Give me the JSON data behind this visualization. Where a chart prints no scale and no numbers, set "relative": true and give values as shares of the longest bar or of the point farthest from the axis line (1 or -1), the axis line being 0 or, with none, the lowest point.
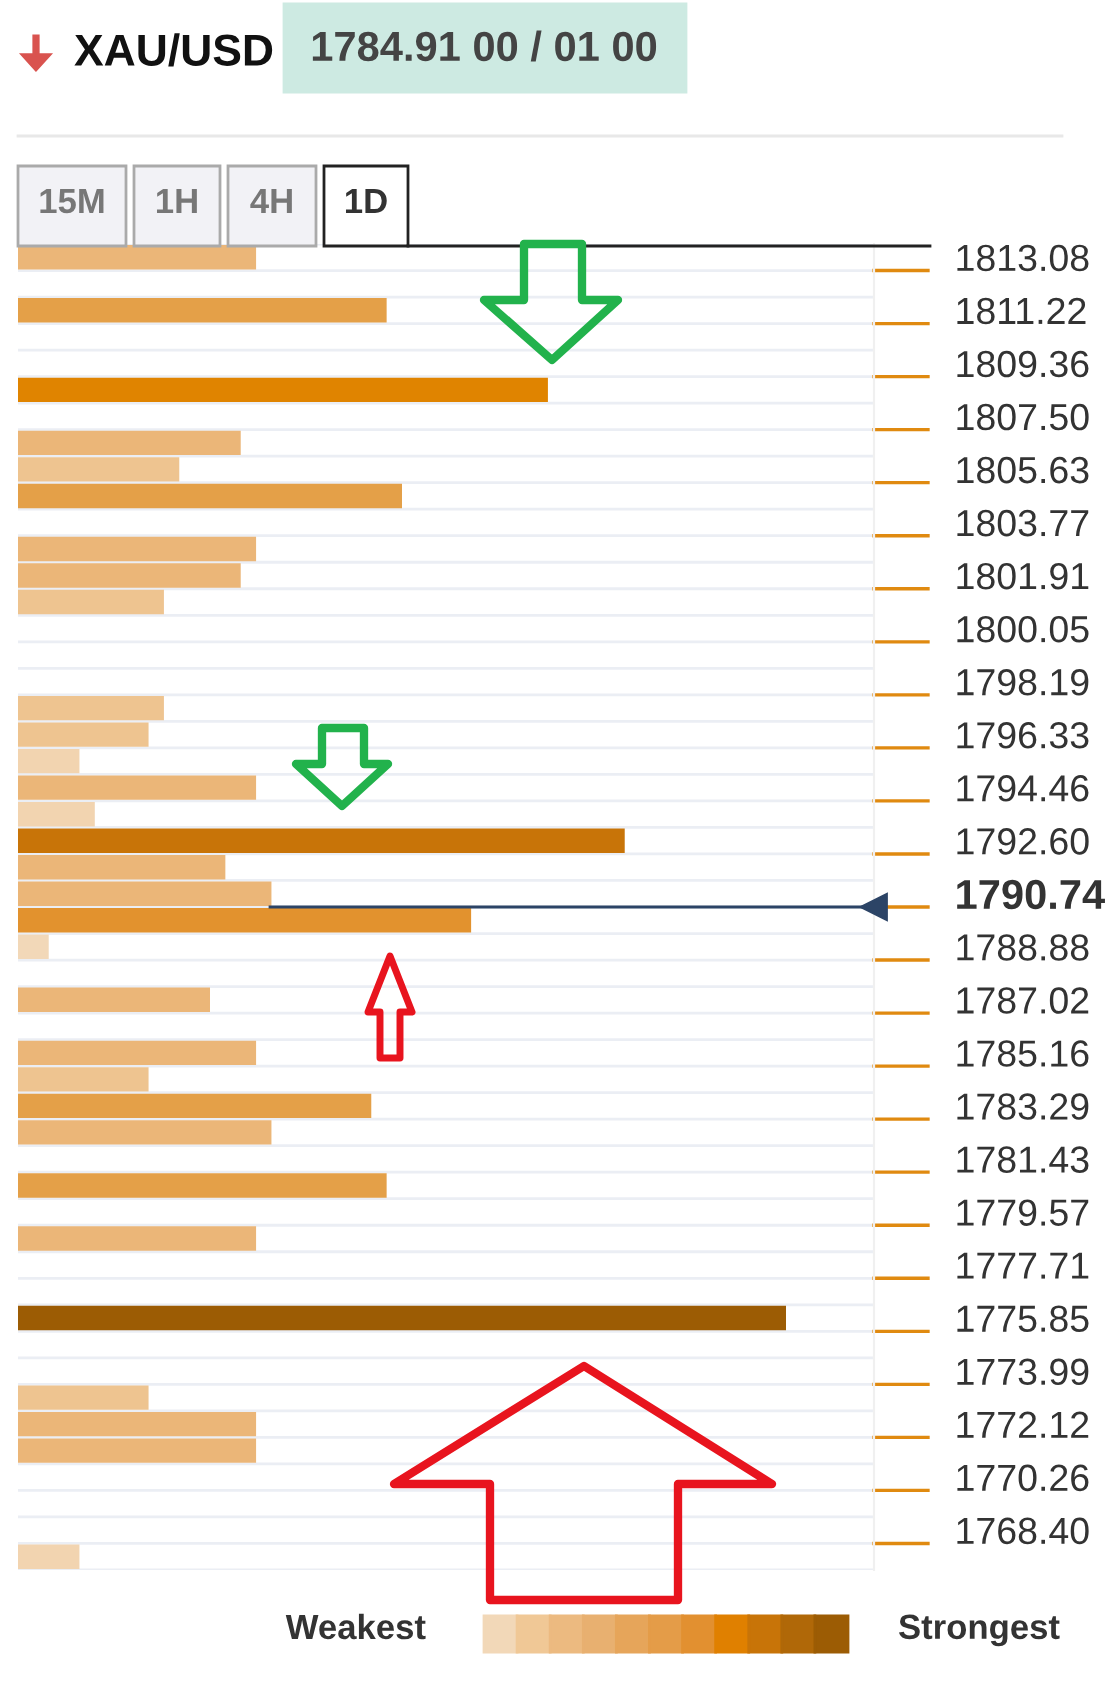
{
  "chart_data": {
    "type": "bar",
    "orientation": "horizontal",
    "relative": true,
    "title": "XAU/USD",
    "subtitle": "1784.91 00 / 01 00",
    "categories": [
      "1813.08",
      null,
      "1811.22",
      null,
      "1809.36",
      null,
      "1807.50",
      null,
      "1805.63",
      null,
      "1803.77",
      null,
      "1801.91",
      null,
      "1800.05",
      null,
      "1798.19",
      null,
      "1796.33",
      null,
      "1794.46",
      null,
      "1792.60",
      null,
      "1790.74",
      null,
      "1788.88",
      null,
      "1787.02",
      null,
      "1785.16",
      null,
      "1783.29",
      null,
      "1781.43",
      null,
      "1779.57",
      null,
      "1777.71",
      null,
      "1775.85",
      null,
      "1773.99",
      null,
      "1772.12",
      null,
      "1770.26",
      null,
      "1768.40",
      null
    ],
    "values": [
      0.31,
      null,
      0.48,
      null,
      null,
      0.69,
      null,
      0.29,
      0.21,
      0.5,
      null,
      0.31,
      0.29,
      0.19,
      null,
      null,
      null,
      0.19,
      0.17,
      0.08,
      0.31,
      0.1,
      0.79,
      0.27,
      0.33,
      0.59,
      0.04,
      null,
      0.25,
      null,
      0.31,
      0.17,
      0.46,
      0.33,
      null,
      0.48,
      null,
      0.31,
      null,
      null,
      1,
      null,
      null,
      0.17,
      0.31,
      0.31,
      null,
      null,
      null,
      0.08
    ],
    "colors": [
      "#ebb678",
      null,
      "#e4a048",
      null,
      null,
      "#e08400",
      null,
      "#ebb678",
      "#eec490",
      "#e4a048",
      null,
      "#ebb678",
      "#ebb678",
      "#eec490",
      null,
      null,
      null,
      "#eec490",
      "#eec490",
      "#f2d4b0",
      "#ebb678",
      "#f2d4b0",
      "#c87408",
      "#ebb678",
      "#ebb678",
      "#e2922e",
      "#f2d8b8",
      null,
      "#ebb678",
      null,
      "#ebb678",
      "#eec490",
      "#e4a048",
      "#ebb678",
      null,
      "#e4a048",
      null,
      "#ebb678",
      null,
      null,
      "#9c5c04",
      null,
      null,
      "#eec490",
      "#ebb678",
      "#ebb678",
      null,
      null,
      null,
      "#f2d4b0"
    ],
    "ref_lines": [
      {
        "axis": "y",
        "value": "1790.74",
        "color": "#2c4466"
      }
    ],
    "grid": "y",
    "annotations": [
      "15M",
      "1H",
      "4H",
      "1D",
      "Weakest",
      "Strongest"
    ]
  }
}
